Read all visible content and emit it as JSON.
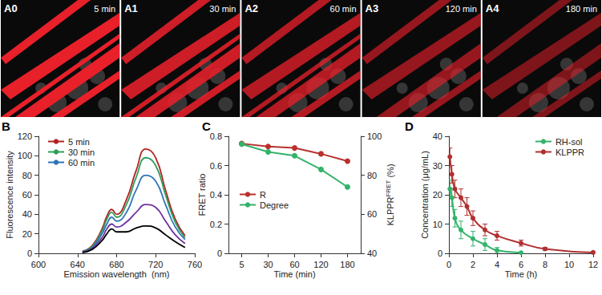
{
  "image_panels": [
    {
      "label": "A0",
      "time": "5 min"
    },
    {
      "label": "A1",
      "time": "30 min"
    },
    {
      "label": "A2",
      "time": "60 min"
    },
    {
      "label": "A3",
      "time": "120 min"
    },
    {
      "label": "A4",
      "time": "180 min"
    }
  ],
  "chart_data": [
    {
      "title": "B",
      "type": "line",
      "xlabel": "Emission wavelength  (nm)",
      "ylabel": "Fluorescence intensity",
      "x": [
        645,
        655,
        665,
        670,
        675,
        680,
        690,
        700,
        710,
        720,
        730,
        740,
        750
      ],
      "xlim": [
        600,
        760
      ],
      "xticks": [
        600,
        640,
        680,
        720,
        760
      ],
      "ylim": [
        0,
        120
      ],
      "yticks": [
        0,
        20,
        40,
        60,
        80,
        100,
        120
      ],
      "legend": "upper left",
      "series": [
        {
          "name": "5 min",
          "color": "#b22222",
          "marker": "none",
          "values": [
            2,
            8,
            25,
            38,
            45,
            40,
            55,
            85,
            107,
            98,
            65,
            35,
            18
          ]
        },
        {
          "name": "30 min",
          "color": "#2e9e5b",
          "marker": "none",
          "values": [
            2,
            7,
            23,
            35,
            42,
            37,
            50,
            78,
            98,
            90,
            60,
            32,
            16
          ]
        },
        {
          "name": "60 min",
          "color": "#2e75b6",
          "marker": "none",
          "values": [
            2,
            6,
            20,
            30,
            37,
            33,
            42,
            65,
            80,
            74,
            50,
            27,
            14
          ]
        },
        {
          "color": "#7030a0",
          "marker": "none",
          "values": [
            1,
            5,
            16,
            25,
            30,
            27,
            32,
            42,
            50,
            47,
            33,
            19,
            10
          ]
        },
        {
          "color": "#000000",
          "marker": "none",
          "values": [
            1,
            4,
            13,
            20,
            25,
            22,
            22,
            26,
            28,
            26,
            19,
            12,
            6
          ]
        }
      ]
    },
    {
      "title": "C",
      "type": "line",
      "xlabel": "Time (min)",
      "ylabel": "FRET ratio",
      "y2label": {
        "text": "KLPPR",
        "sup": "FRET",
        "tail": " (%)"
      },
      "categories": [
        "5",
        "30",
        "60",
        "120",
        "180"
      ],
      "ylim": [
        0,
        0.8
      ],
      "yticks": [
        0,
        0.2,
        0.4,
        0.6,
        0.8
      ],
      "y2lim": [
        40,
        100
      ],
      "y2ticks": [
        40,
        60,
        80,
        100
      ],
      "legend": "center left",
      "series": [
        {
          "name": "R",
          "color": "#b8312f",
          "marker": "circle",
          "values": [
            0.75,
            0.73,
            0.72,
            0.68,
            0.63
          ]
        },
        {
          "name": "Degree",
          "color": "#33b36b",
          "marker": "circle",
          "axis": "y2",
          "values": [
            96,
            92,
            90,
            83,
            74
          ]
        }
      ]
    },
    {
      "title": "D",
      "type": "line",
      "xlabel": "Time (h)",
      "ylabel": "Concentration (μg/mL)",
      "xlim": [
        0,
        12
      ],
      "xticks": [
        0,
        2,
        4,
        6,
        8,
        10,
        12
      ],
      "ylim": [
        0,
        40
      ],
      "yticks": [
        0,
        10,
        20,
        30,
        40
      ],
      "legend": "upper right",
      "series": [
        {
          "name": "RH-sol",
          "color": "#33b36b",
          "marker": "circle",
          "x": [
            0.083,
            0.25,
            0.5,
            1,
            2,
            3,
            4,
            6
          ],
          "values": [
            22,
            19,
            12,
            8,
            5,
            3,
            1,
            0.2
          ],
          "error": [
            3,
            3,
            3,
            3,
            2.5,
            2,
            1,
            0.3
          ]
        },
        {
          "name": "KLPPR",
          "color": "#b03030",
          "marker": "circle",
          "x": [
            0.083,
            0.25,
            0.5,
            1,
            1.5,
            2,
            3,
            4,
            6,
            8,
            12
          ],
          "values": [
            33,
            27,
            22,
            19,
            16,
            12,
            8,
            6,
            3.5,
            1.5,
            0.3
          ],
          "error": [
            3,
            3,
            3,
            3,
            3,
            2.5,
            2,
            1.5,
            1,
            0.5,
            0.3
          ]
        }
      ]
    }
  ]
}
